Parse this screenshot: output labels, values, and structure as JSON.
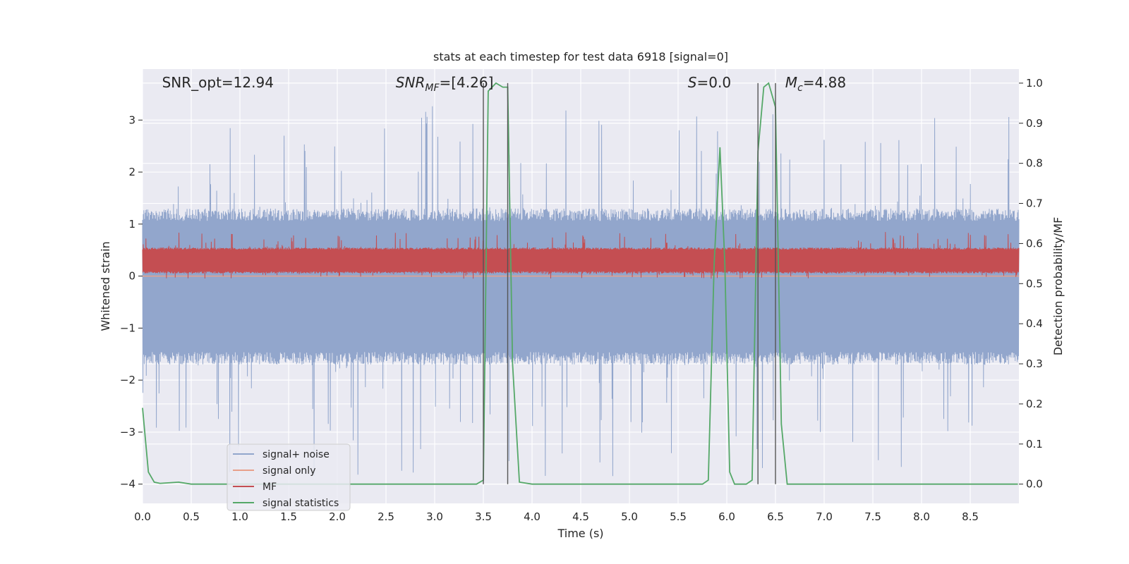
{
  "chart_data": {
    "type": "line",
    "title": "stats at each timestep for test data 6918 [signal=0]",
    "xlabel": "Time (s)",
    "ylabel": "Whitened strain",
    "ylabel_right": "Detection probability/MF",
    "xlim": [
      0,
      9.0
    ],
    "ylim": [
      -4.37,
      3.98
    ],
    "ylim_right": [
      -0.048,
      1.035
    ],
    "grid": true,
    "legend_position": "lower-left",
    "x_ticks": [
      "0.0",
      "0.5",
      "1.0",
      "1.5",
      "2.0",
      "2.5",
      "3.0",
      "3.5",
      "4.0",
      "4.5",
      "5.0",
      "5.5",
      "6.0",
      "6.5",
      "7.0",
      "7.5",
      "8.0",
      "8.5"
    ],
    "y_ticks": [
      "3",
      "2",
      "1",
      "0",
      "−1",
      "−2",
      "−3",
      "−4"
    ],
    "y_ticks_right": [
      "1.0",
      "0.9",
      "0.8",
      "0.7",
      "0.6",
      "0.5",
      "0.4",
      "0.3",
      "0.2",
      "0.1",
      "0.0"
    ],
    "annotations": [
      {
        "id": "snr-opt",
        "parts": [
          {
            "t": "SNR_opt=12.94"
          }
        ]
      },
      {
        "id": "snr-mf",
        "parts": [
          {
            "t": "SNR",
            "it": true
          },
          {
            "t": "MF",
            "it": true,
            "sub": true
          },
          {
            "t": "=[4.26]"
          }
        ]
      },
      {
        "id": "s-stat",
        "parts": [
          {
            "t": "S",
            "it": true
          },
          {
            "t": "=0.0"
          }
        ]
      },
      {
        "id": "mc",
        "parts": [
          {
            "t": "M",
            "it": true
          },
          {
            "t": "c",
            "it": true,
            "sub": true
          },
          {
            "t": "=4.88"
          }
        ]
      }
    ],
    "series": [
      {
        "name": "signal+ noise",
        "color": "#92a6cc",
        "kind": "noise",
        "axis": "left",
        "band": [
          -1.7,
          1.3
        ],
        "peaks_max": 3.45,
        "peaks_min": -3.85
      },
      {
        "name": "signal only",
        "color": "#e8a08a",
        "kind": "flat",
        "axis": "left",
        "value": 0.0
      },
      {
        "name": "MF",
        "color": "#c44e52",
        "kind": "noise",
        "axis": "left",
        "band": [
          0.05,
          0.55
        ],
        "peaks_max": 0.85,
        "peaks_min": -0.05
      },
      {
        "name": "signal statistics",
        "color": "#55a868",
        "kind": "line",
        "axis": "right",
        "x": [
          0.0,
          0.06,
          0.12,
          0.18,
          0.25,
          0.37,
          0.5,
          1.0,
          2.0,
          3.0,
          3.43,
          3.5,
          3.55,
          3.63,
          3.7,
          3.75,
          3.8,
          3.87,
          4.0,
          5.0,
          5.75,
          5.81,
          5.87,
          5.93,
          5.98,
          6.03,
          6.08,
          6.2,
          6.26,
          6.32,
          6.38,
          6.43,
          6.5,
          6.56,
          6.62,
          6.7,
          7.0,
          8.0,
          8.99
        ],
        "y": [
          0.19,
          0.03,
          0.005,
          0.002,
          0.003,
          0.005,
          0.0,
          0.0,
          0.0,
          0.0,
          0.0,
          0.01,
          0.98,
          1.0,
          0.99,
          0.99,
          0.3,
          0.005,
          0.0,
          0.0,
          0.0,
          0.01,
          0.55,
          0.84,
          0.55,
          0.03,
          0.0,
          0.0,
          0.01,
          0.83,
          0.99,
          1.0,
          0.94,
          0.15,
          0.0,
          0.0,
          0.0,
          0.0,
          0.0
        ]
      }
    ],
    "vlines": [
      3.5,
      3.75,
      6.32,
      6.5
    ]
  }
}
